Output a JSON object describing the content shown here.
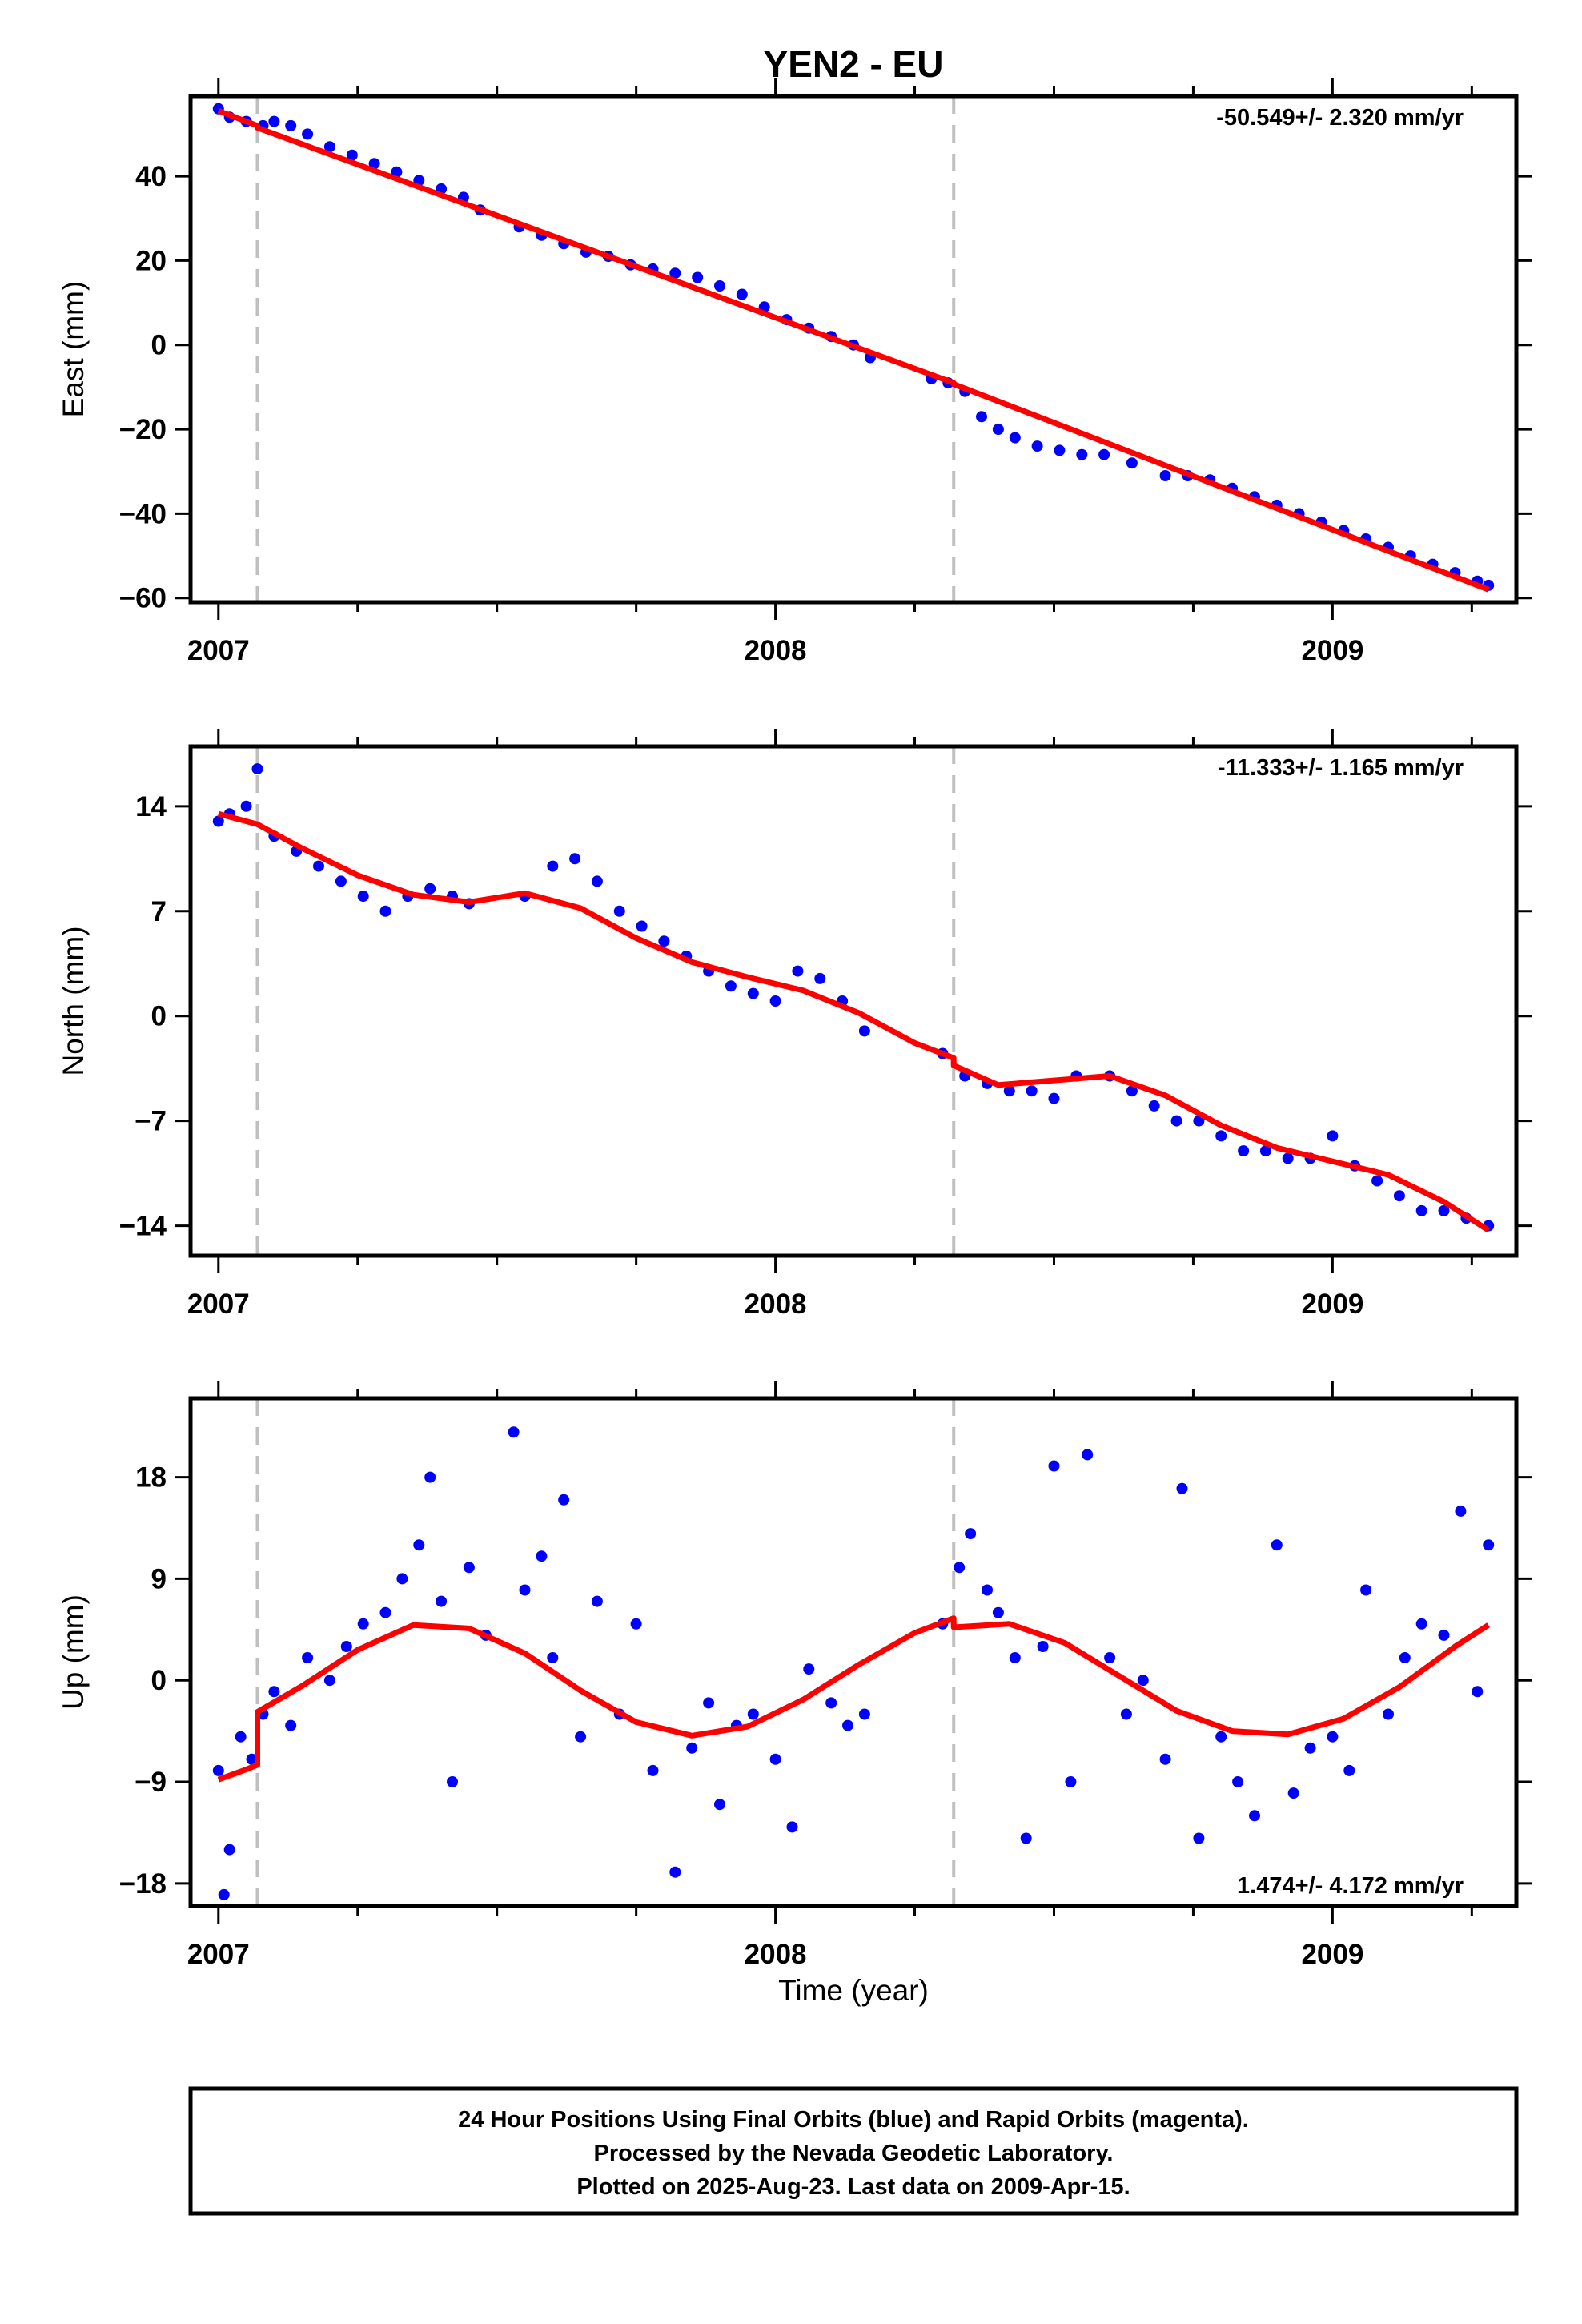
{
  "title": "YEN2 - EU",
  "xlabel": "Time (year)",
  "footer": [
    "24 Hour Positions Using Final Orbits (blue) and Rapid Orbits (magenta).",
    "Processed by the Nevada Geodetic Laboratory.",
    "Plotted on 2025-Aug-23. Last data on 2009-Apr-15."
  ],
  "colors": {
    "points": "#0000ff",
    "model": "#ff0000",
    "steps": "#bfbfbf",
    "axes": "#000000"
  },
  "chart_data": [
    {
      "type": "scatter",
      "panel": "east",
      "ylabel": "East (mm)",
      "rate_label": "-50.549+/- 2.320 mm/yr",
      "rate_position": "top-right",
      "xlim": [
        2006.95,
        2009.33
      ],
      "ylim": [
        -61,
        59
      ],
      "xticks": [
        2007,
        2008,
        2009
      ],
      "xtick_labels": [
        "2007",
        "2008",
        "2009"
      ],
      "yticks": [
        40,
        20,
        0,
        -20,
        -40,
        -60
      ],
      "ytick_labels": [
        "40",
        "20",
        "0",
        "−20",
        "−40",
        "−60"
      ],
      "step_epochs": [
        2007.07,
        2008.32
      ],
      "series": [
        {
          "kind": "points",
          "x": [
            2007.0,
            2007.02,
            2007.05,
            2007.08,
            2007.1,
            2007.13,
            2007.16,
            2007.2,
            2007.24,
            2007.28,
            2007.32,
            2007.36,
            2007.4,
            2007.44,
            2007.47,
            2007.54,
            2007.58,
            2007.62,
            2007.66,
            2007.7,
            2007.74,
            2007.78,
            2007.82,
            2007.86,
            2007.9,
            2007.94,
            2007.98,
            2008.02,
            2008.06,
            2008.1,
            2008.14,
            2008.17,
            2008.28,
            2008.31,
            2008.34,
            2008.37,
            2008.4,
            2008.43,
            2008.47,
            2008.51,
            2008.55,
            2008.59,
            2008.64,
            2008.7,
            2008.74,
            2008.78,
            2008.82,
            2008.86,
            2008.9,
            2008.94,
            2008.98,
            2009.02,
            2009.06,
            2009.1,
            2009.14,
            2009.18,
            2009.22,
            2009.26,
            2009.28
          ],
          "y": [
            56,
            54,
            53,
            52,
            53,
            52,
            50,
            47,
            45,
            43,
            41,
            39,
            37,
            35,
            32,
            28,
            26,
            24,
            22,
            21,
            19,
            18,
            17,
            16,
            14,
            12,
            9,
            6,
            4,
            2,
            0,
            -3,
            -8,
            -9,
            -11,
            -17,
            -20,
            -22,
            -24,
            -25,
            -26,
            -26,
            -28,
            -31,
            -31,
            -32,
            -34,
            -36,
            -38,
            -40,
            -42,
            -44,
            -46,
            -48,
            -50,
            -52,
            -54,
            -56,
            -57
          ]
        },
        {
          "kind": "model",
          "x": [
            2007.0,
            2007.07,
            2007.07,
            2008.32,
            2008.32,
            2009.28
          ],
          "y": [
            55.5,
            52,
            51.5,
            -9,
            -9.3,
            -58
          ]
        }
      ]
    },
    {
      "type": "scatter",
      "panel": "north",
      "ylabel": "North (mm)",
      "rate_label": "-11.333+/- 1.165 mm/yr",
      "rate_position": "top-right",
      "xlim": [
        2006.95,
        2009.33
      ],
      "ylim": [
        -16,
        18
      ],
      "xticks": [
        2007,
        2008,
        2009
      ],
      "xtick_labels": [
        "2007",
        "2008",
        "2009"
      ],
      "yticks": [
        14,
        7,
        0,
        -7,
        -14
      ],
      "ytick_labels": [
        "14",
        "7",
        "0",
        "−7",
        "−14"
      ],
      "step_epochs": [
        2007.07,
        2008.32
      ],
      "series": [
        {
          "kind": "points",
          "x": [
            2007.0,
            2007.02,
            2007.05,
            2007.07,
            2007.1,
            2007.14,
            2007.18,
            2007.22,
            2007.26,
            2007.3,
            2007.34,
            2007.38,
            2007.42,
            2007.45,
            2007.55,
            2007.6,
            2007.64,
            2007.68,
            2007.72,
            2007.76,
            2007.8,
            2007.84,
            2007.88,
            2007.92,
            2007.96,
            2008.0,
            2008.04,
            2008.08,
            2008.12,
            2008.16,
            2008.3,
            2008.34,
            2008.38,
            2008.42,
            2008.46,
            2008.5,
            2008.54,
            2008.6,
            2008.64,
            2008.68,
            2008.72,
            2008.76,
            2008.8,
            2008.84,
            2008.88,
            2008.92,
            2008.96,
            2009.0,
            2009.04,
            2009.08,
            2009.12,
            2009.16,
            2009.2,
            2009.24,
            2009.28
          ],
          "y": [
            13,
            13.5,
            14,
            16.5,
            12,
            11,
            10,
            9,
            8,
            7,
            8,
            8.5,
            8,
            7.5,
            8,
            10,
            10.5,
            9,
            7,
            6,
            5,
            4,
            3,
            2,
            1.5,
            1,
            3,
            2.5,
            1,
            -1,
            -2.5,
            -4,
            -4.5,
            -5,
            -5,
            -5.5,
            -4,
            -4,
            -5,
            -6,
            -7,
            -7,
            -8,
            -9,
            -9,
            -9.5,
            -9.5,
            -8,
            -10,
            -11,
            -12,
            -13,
            -13,
            -13.5,
            -14
          ]
        },
        {
          "kind": "model",
          "x": [
            2007.0,
            2007.07,
            2007.15,
            2007.25,
            2007.35,
            2007.45,
            2007.55,
            2007.65,
            2007.75,
            2007.85,
            2007.95,
            2008.05,
            2008.15,
            2008.25,
            2008.32,
            2008.32,
            2008.4,
            2008.5,
            2008.6,
            2008.7,
            2008.8,
            2008.9,
            2009.0,
            2009.1,
            2009.2,
            2009.28
          ],
          "y": [
            13.5,
            12.8,
            11.2,
            9.4,
            8.1,
            7.6,
            8.2,
            7.2,
            5.2,
            3.6,
            2.6,
            1.7,
            0.2,
            -1.8,
            -2.8,
            -3.3,
            -4.6,
            -4.3,
            -4,
            -5.3,
            -7.3,
            -8.8,
            -9.7,
            -10.6,
            -12.4,
            -14.3
          ]
        }
      ]
    },
    {
      "type": "scatter",
      "panel": "up",
      "ylabel": "Up (mm)",
      "rate_label": "1.474+/- 4.172 mm/yr",
      "rate_position": "bottom-right",
      "xlim": [
        2006.95,
        2009.33
      ],
      "ylim": [
        -20,
        25
      ],
      "xticks": [
        2007,
        2008,
        2009
      ],
      "xtick_labels": [
        "2007",
        "2008",
        "2009"
      ],
      "yticks": [
        18,
        9,
        0,
        -9,
        -18
      ],
      "ytick_labels": [
        "18",
        "9",
        "0",
        "−9",
        "−18"
      ],
      "step_epochs": [
        2007.07,
        2008.32
      ],
      "series": [
        {
          "kind": "points",
          "x": [
            2007.0,
            2007.01,
            2007.02,
            2007.04,
            2007.06,
            2007.08,
            2007.1,
            2007.13,
            2007.16,
            2007.2,
            2007.23,
            2007.26,
            2007.3,
            2007.33,
            2007.36,
            2007.38,
            2007.4,
            2007.42,
            2007.45,
            2007.48,
            2007.53,
            2007.55,
            2007.58,
            2007.6,
            2007.62,
            2007.65,
            2007.68,
            2007.72,
            2007.75,
            2007.78,
            2007.82,
            2007.85,
            2007.88,
            2007.9,
            2007.93,
            2007.96,
            2008.0,
            2008.03,
            2008.06,
            2008.1,
            2008.13,
            2008.16,
            2008.3,
            2008.33,
            2008.35,
            2008.38,
            2008.4,
            2008.43,
            2008.45,
            2008.48,
            2008.5,
            2008.53,
            2008.56,
            2008.6,
            2008.63,
            2008.66,
            2008.7,
            2008.73,
            2008.76,
            2008.8,
            2008.83,
            2008.86,
            2008.9,
            2008.93,
            2008.96,
            2009.0,
            2009.03,
            2009.06,
            2009.1,
            2009.13,
            2009.16,
            2009.2,
            2009.23,
            2009.26,
            2009.28
          ],
          "y": [
            -8,
            -19,
            -15,
            -5,
            -7,
            -3,
            -1,
            -4,
            2,
            0,
            3,
            5,
            6,
            9,
            12,
            18,
            7,
            -9,
            10,
            4,
            22,
            8,
            11,
            2,
            16,
            -5,
            7,
            -3,
            5,
            -8,
            -17,
            -6,
            -2,
            -11,
            -4,
            -3,
            -7,
            -13,
            1,
            -2,
            -4,
            -3,
            5,
            10,
            13,
            8,
            6,
            2,
            -14,
            3,
            19,
            -9,
            20,
            2,
            -3,
            0,
            -7,
            17,
            -14,
            -5,
            -9,
            -12,
            12,
            -10,
            -6,
            -5,
            -8,
            8,
            -3,
            2,
            5,
            4,
            15,
            -1,
            12
          ]
        },
        {
          "kind": "model",
          "x": [
            2007.0,
            2007.05,
            2007.07,
            2007.07,
            2007.15,
            2007.25,
            2007.35,
            2007.45,
            2007.55,
            2007.65,
            2007.75,
            2007.85,
            2007.95,
            2008.05,
            2008.15,
            2008.25,
            2008.32,
            2008.32,
            2008.42,
            2008.52,
            2008.62,
            2008.72,
            2008.82,
            2008.92,
            2009.02,
            2009.12,
            2009.22,
            2009.28
          ],
          "y": [
            -8.8,
            -7.9,
            -7.5,
            -2.8,
            -0.5,
            2.7,
            4.9,
            4.6,
            2.4,
            -0.9,
            -3.7,
            -4.9,
            -4.1,
            -1.7,
            1.4,
            4.2,
            5.5,
            4.7,
            5,
            3.3,
            0.3,
            -2.7,
            -4.5,
            -4.8,
            -3.4,
            -0.6,
            3,
            4.9
          ]
        }
      ]
    }
  ]
}
